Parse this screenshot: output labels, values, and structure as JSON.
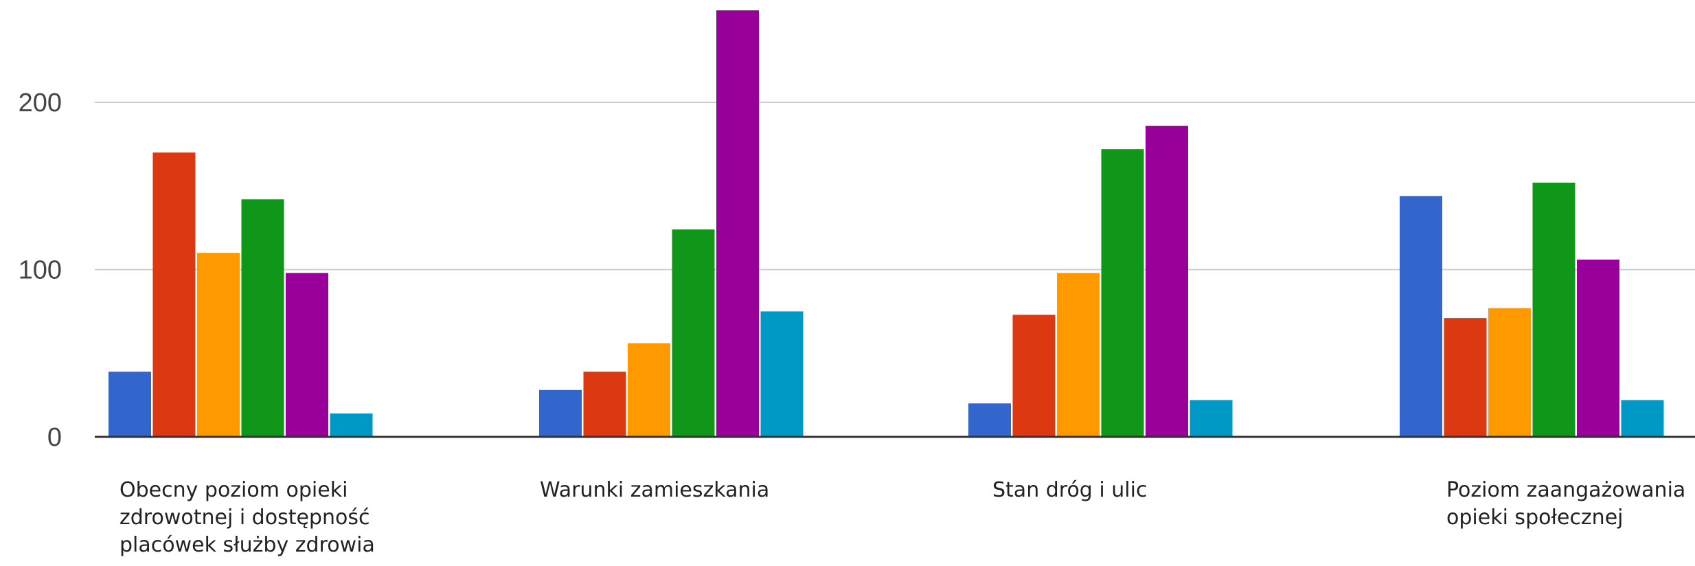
{
  "chart_data": {
    "type": "bar",
    "categories": [
      "Obecny poziom opieki zdrowotnej i dostępność placówek służby zdrowia",
      "Warunki zamieszkania",
      "Stan dróg i ulic",
      "Poziom zaangażowania opieki społecznej"
    ],
    "category_lines": [
      [
        "Obecny poziom opieki",
        "zdrowotnej i dostępność",
        "placówek służby zdrowia"
      ],
      [
        "Warunki zamieszkania"
      ],
      [
        "Stan dróg i ulic"
      ],
      [
        "Poziom zaangażowania",
        "opieki społecznej"
      ]
    ],
    "series": [
      {
        "color": "#3366cc",
        "values": [
          39,
          28,
          20,
          144
        ]
      },
      {
        "color": "#dc3912",
        "values": [
          170,
          39,
          73,
          71
        ]
      },
      {
        "color": "#ff9900",
        "values": [
          110,
          56,
          98,
          77
        ]
      },
      {
        "color": "#109618",
        "values": [
          142,
          124,
          172,
          152
        ]
      },
      {
        "color": "#990099",
        "values": [
          98,
          255,
          186,
          106
        ]
      },
      {
        "color": "#0099c6",
        "values": [
          14,
          75,
          22,
          22
        ]
      }
    ],
    "y_ticks": [
      0,
      100,
      200
    ],
    "y_tick_labels": [
      "0",
      "100",
      "200"
    ],
    "ylim": [
      0,
      255
    ],
    "grid": true,
    "legend": "none"
  }
}
